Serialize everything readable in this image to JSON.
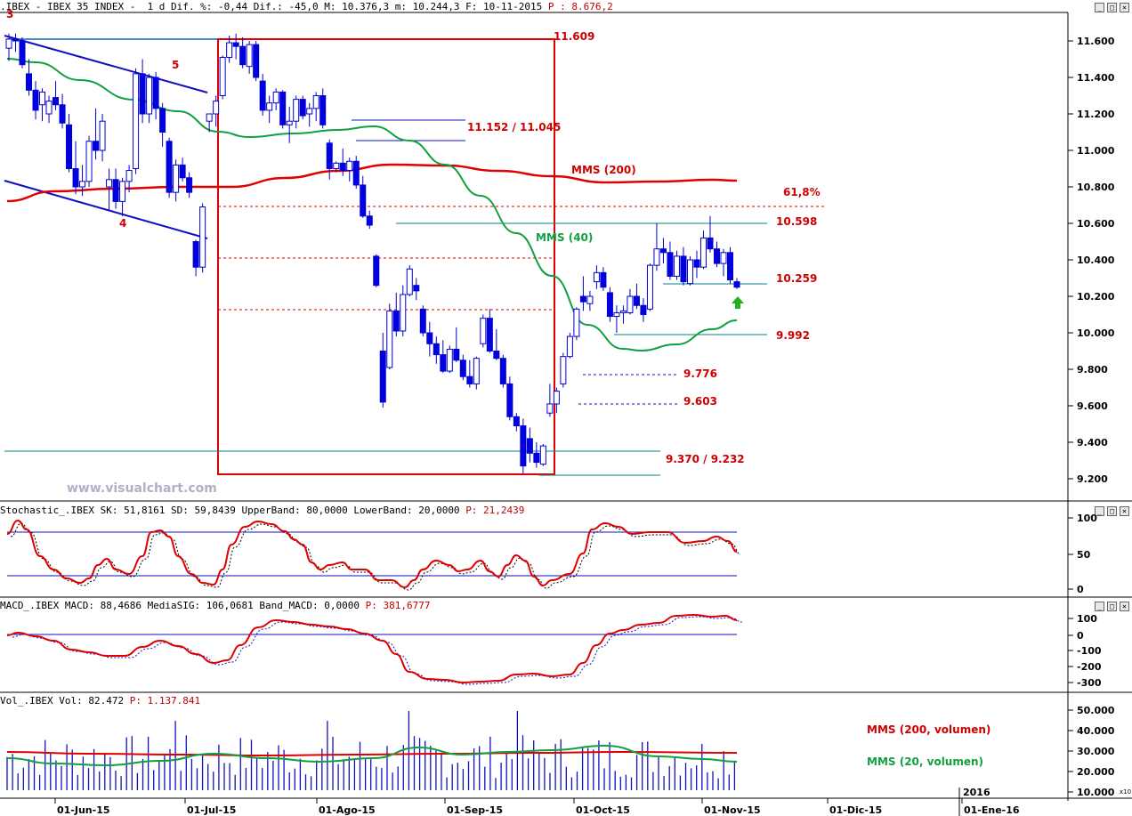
{
  "price_panel": {
    "header_prefix": ".IBEX - IBEX 35 INDEX -  1 d Dif. %: -0,44 Dif.: -45,0 M: 10.376,3 m: 10.244,3 F: 10-11-2015 ",
    "header_p": "P : 8.676,2",
    "watermark": "www.visualchart.com",
    "y_ticks": [
      "11.600",
      "11.400",
      "11.200",
      "11.000",
      "10.800",
      "10.600",
      "10.400",
      "10.200",
      "10.000",
      "9.800",
      "9.600",
      "9.400",
      "9.200"
    ],
    "levels": {
      "l11609": "11.609",
      "l11152": "11.152 / 11.045",
      "fib": "61,8%",
      "l10598": "10.598",
      "l10259": "10.259",
      "l9992": "9.992",
      "l9776": "9.776",
      "l9603": "9.603",
      "l9370": "9.370 / 9.232"
    },
    "mms200": "MMS (200)",
    "mms40": "MMS (40)",
    "wave_labels": [
      "3",
      "4",
      "5"
    ]
  },
  "stoch_panel": {
    "header_prefix": "Stochastic_.IBEX SK: 51,8161 SD: 59,8439 UpperBand: 80,0000 LowerBand: 20,0000 ",
    "header_p": "P: 21,2439",
    "y_ticks": [
      "100",
      "50",
      "0"
    ]
  },
  "macd_panel": {
    "header_prefix": "MACD_.IBEX MACD: 88,4686 MediaSIG: 106,0681 Band_MACD: 0,0000 ",
    "header_p": "P: 381,6777",
    "y_ticks": [
      "100",
      "0",
      "-100",
      "-200",
      "-300"
    ]
  },
  "vol_panel": {
    "header_prefix": "Vol_.IBEX Vol: 82.472 ",
    "header_p": "P: 1.137.841",
    "y_ticks": [
      "50.000",
      "40.000",
      "30.000",
      "20.000",
      "10.000"
    ],
    "legend_200": "MMS (200, volumen)",
    "legend_20": "MMS (20, volumen)",
    "x10": "x10"
  },
  "x_axis": {
    "labels": [
      "01-Jun-15",
      "01-Jul-15",
      "01-Ago-15",
      "01-Sep-15",
      "01-Oct-15",
      "01-Nov-15",
      "01-Dic-15",
      "01-Ene-16"
    ],
    "year_marker": "2016"
  },
  "chart_data": {
    "type": "candlestick",
    "title": "IBEX 35 INDEX - 1 d",
    "series": [
      {
        "name": "MMS (200)",
        "values_note": "approx 10800-10900 across period"
      },
      {
        "name": "MMS (40)"
      }
    ],
    "price_ylim": [
      9150,
      11700
    ],
    "candles_ohlc_approx": [
      [
        11560,
        11640,
        11490,
        11610
      ],
      [
        11610,
        11640,
        11540,
        11600
      ],
      [
        11600,
        11620,
        11450,
        11470
      ],
      [
        11420,
        11500,
        11300,
        11330
      ],
      [
        11330,
        11380,
        11170,
        11220
      ],
      [
        11250,
        11340,
        11160,
        11320
      ],
      [
        11200,
        11300,
        11150,
        11270
      ],
      [
        11290,
        11380,
        11220,
        11250
      ],
      [
        11250,
        11310,
        11120,
        11150
      ],
      [
        11140,
        11200,
        10880,
        10900
      ],
      [
        10900,
        11050,
        10760,
        10800
      ],
      [
        10800,
        10920,
        10750,
        10830
      ],
      [
        10830,
        11080,
        10800,
        11050
      ],
      [
        11050,
        11230,
        10950,
        11000
      ],
      [
        11000,
        11200,
        10940,
        11160
      ],
      [
        10800,
        10900,
        10670,
        10840
      ],
      [
        10840,
        10900,
        10680,
        10720
      ],
      [
        10720,
        10850,
        10640,
        10830
      ],
      [
        10830,
        10920,
        10770,
        10890
      ],
      [
        10900,
        11450,
        10870,
        11420
      ],
      [
        11420,
        11500,
        11150,
        11200
      ],
      [
        11200,
        11420,
        11150,
        11400
      ],
      [
        11400,
        11430,
        11170,
        11230
      ],
      [
        11230,
        11260,
        11020,
        11100
      ],
      [
        11050,
        11070,
        10740,
        10770
      ],
      [
        10770,
        10950,
        10720,
        10920
      ],
      [
        10920,
        10960,
        10830,
        10850
      ],
      [
        10850,
        10880,
        10740,
        10770
      ],
      [
        10500,
        10510,
        10310,
        10360
      ],
      [
        10360,
        10710,
        10330,
        10690
      ],
      [
        11160,
        11200,
        11100,
        11200
      ],
      [
        11200,
        11300,
        11130,
        11270
      ],
      [
        11300,
        11520,
        11280,
        11510
      ],
      [
        11510,
        11630,
        11480,
        11590
      ],
      [
        11590,
        11640,
        11500,
        11570
      ],
      [
        11570,
        11620,
        11450,
        11470
      ],
      [
        11460,
        11600,
        11420,
        11580
      ],
      [
        11580,
        11600,
        11380,
        11400
      ],
      [
        11380,
        11420,
        11190,
        11220
      ],
      [
        11220,
        11300,
        11150,
        11260
      ],
      [
        11260,
        11340,
        11220,
        11320
      ],
      [
        11320,
        11330,
        11120,
        11140
      ],
      [
        11140,
        11240,
        11040,
        11160
      ],
      [
        11160,
        11300,
        11120,
        11280
      ],
      [
        11280,
        11300,
        11170,
        11190
      ],
      [
        11200,
        11260,
        11130,
        11230
      ],
      [
        11230,
        11320,
        11160,
        11300
      ],
      [
        11300,
        11340,
        11120,
        11140
      ],
      [
        11040,
        11060,
        10840,
        10900
      ],
      [
        10900,
        10940,
        10880,
        10930
      ],
      [
        10930,
        11010,
        10860,
        10890
      ],
      [
        10890,
        10960,
        10830,
        10940
      ],
      [
        10940,
        10970,
        10790,
        10810
      ],
      [
        10810,
        10860,
        10630,
        10640
      ],
      [
        10640,
        10670,
        10570,
        10590
      ],
      [
        10420,
        10430,
        10250,
        10260
      ],
      [
        9900,
        10000,
        9590,
        9620
      ],
      [
        9810,
        10160,
        9800,
        10120
      ],
      [
        10120,
        10220,
        9980,
        10010
      ],
      [
        10010,
        10260,
        9980,
        10210
      ],
      [
        10210,
        10370,
        10200,
        10350
      ],
      [
        10260,
        10300,
        10180,
        10230
      ],
      [
        10130,
        10150,
        9980,
        10000
      ],
      [
        10000,
        10060,
        9870,
        9940
      ],
      [
        9940,
        9980,
        9830,
        9880
      ],
      [
        9880,
        9960,
        9780,
        9790
      ],
      [
        9790,
        9930,
        9780,
        9910
      ],
      [
        9910,
        10030,
        9840,
        9850
      ],
      [
        9850,
        9880,
        9740,
        9760
      ],
      [
        9760,
        9850,
        9700,
        9720
      ],
      [
        9720,
        9870,
        9690,
        9860
      ],
      [
        9940,
        10100,
        9920,
        10080
      ],
      [
        10080,
        10130,
        9890,
        9900
      ],
      [
        9900,
        10020,
        9850,
        9860
      ],
      [
        9860,
        9880,
        9700,
        9720
      ],
      [
        9720,
        9760,
        9520,
        9540
      ],
      [
        9540,
        9560,
        9460,
        9490
      ],
      [
        9490,
        9530,
        9230,
        9270
      ],
      [
        9420,
        9480,
        9290,
        9340
      ],
      [
        9340,
        9400,
        9260,
        9290
      ],
      [
        9280,
        9390,
        9270,
        9380
      ],
      [
        9560,
        9720,
        9540,
        9610
      ],
      [
        9610,
        9700,
        9560,
        9680
      ],
      [
        9720,
        9890,
        9700,
        9870
      ],
      [
        9870,
        10000,
        9860,
        9980
      ],
      [
        9980,
        10140,
        9960,
        10130
      ],
      [
        10200,
        10310,
        10120,
        10170
      ],
      [
        10160,
        10230,
        10120,
        10200
      ],
      [
        10280,
        10370,
        10240,
        10330
      ],
      [
        10330,
        10360,
        10230,
        10250
      ],
      [
        10220,
        10250,
        10060,
        10090
      ],
      [
        10090,
        10150,
        10000,
        10110
      ],
      [
        10110,
        10150,
        10050,
        10120
      ],
      [
        10110,
        10240,
        10100,
        10200
      ],
      [
        10200,
        10270,
        10130,
        10150
      ],
      [
        10150,
        10190,
        10060,
        10100
      ],
      [
        10130,
        10380,
        10120,
        10370
      ],
      [
        10370,
        10600,
        10340,
        10460
      ],
      [
        10460,
        10520,
        10380,
        10440
      ],
      [
        10440,
        10500,
        10290,
        10310
      ],
      [
        10310,
        10450,
        10290,
        10420
      ],
      [
        10420,
        10470,
        10260,
        10280
      ],
      [
        10270,
        10420,
        10260,
        10400
      ],
      [
        10400,
        10450,
        10300,
        10360
      ],
      [
        10360,
        10560,
        10350,
        10520
      ],
      [
        10520,
        10640,
        10440,
        10460
      ],
      [
        10460,
        10500,
        10360,
        10380
      ],
      [
        10380,
        10460,
        10310,
        10440
      ],
      [
        10440,
        10470,
        10270,
        10290
      ],
      [
        10280,
        10300,
        10240,
        10250
      ]
    ],
    "stochastic": {
      "SK": 51.8161,
      "SD": 59.8439,
      "UpperBand": 80,
      "LowerBand": 20
    },
    "macd": {
      "MACD": 88.4686,
      "MediaSIG": 106.0681,
      "Band_MACD": 0
    },
    "volume": {
      "Vol": 82472,
      "mms200_approx": 29000,
      "mms20_approx": 26000
    },
    "colors": {
      "candle": "#0000e0",
      "mms200": "#e00000",
      "mms40": "#00a000",
      "box": "#e00000",
      "channel": "#2020c0"
    }
  }
}
